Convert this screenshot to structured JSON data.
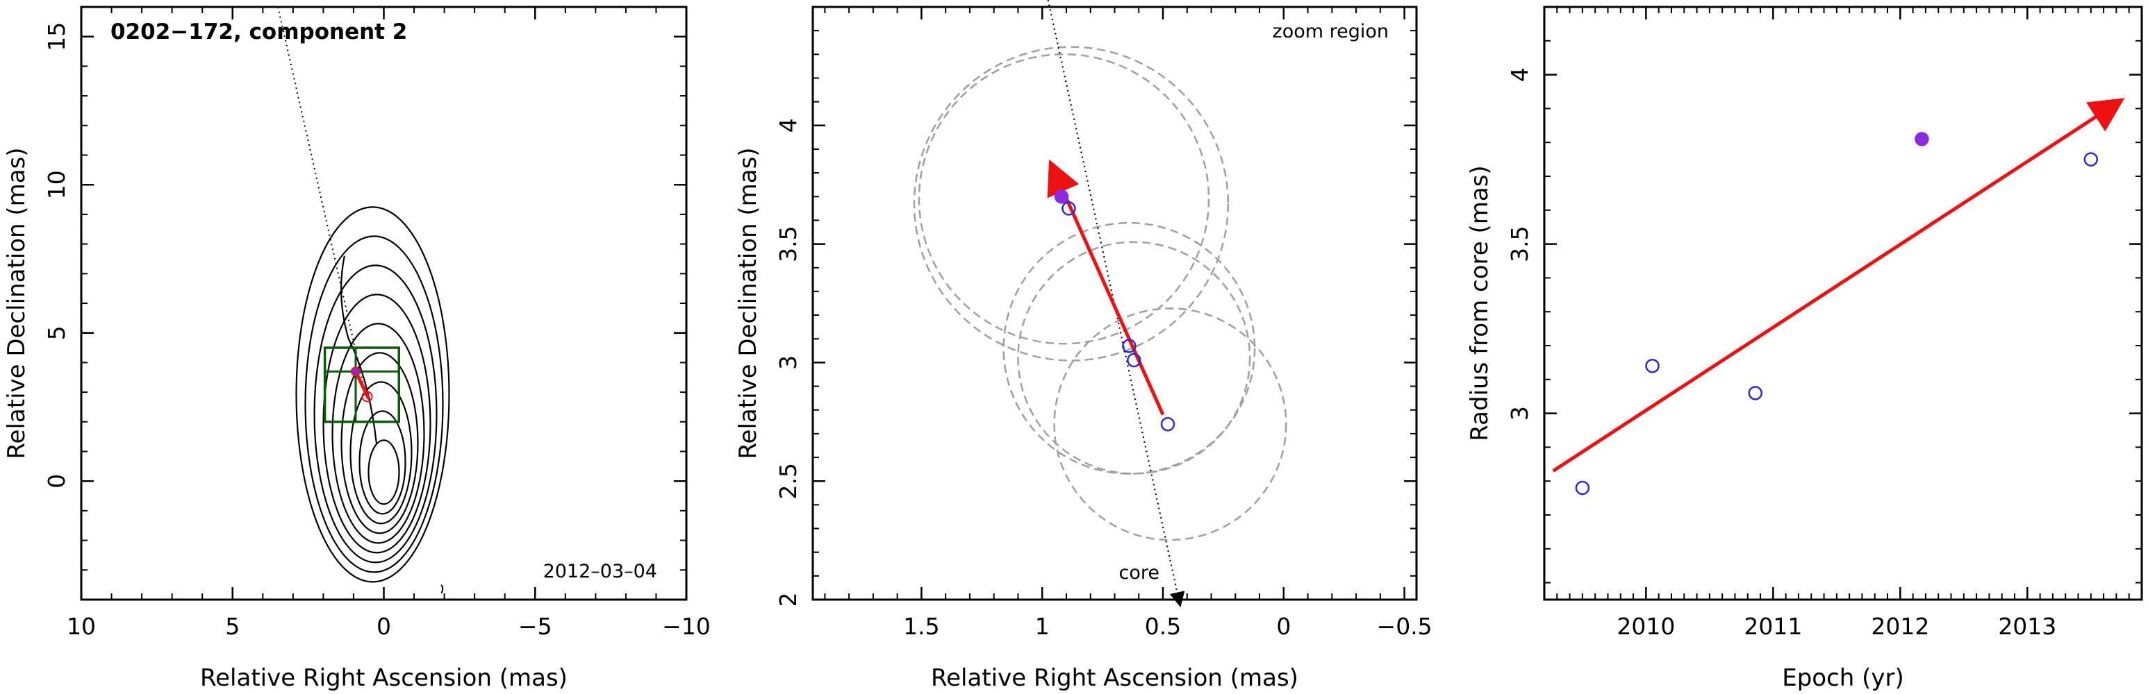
{
  "colors": {
    "axis": "#000000",
    "open_marker": "#2a2ad8",
    "filled_marker": "#8a2be2",
    "arrow": "#ee1111",
    "box": "#0a5a0a",
    "circle": "#a0a0a0"
  },
  "chart_data": [
    {
      "type": "contour",
      "title": "0202−172, component 2",
      "date_label": "2012–03–04",
      "xlabel": "Relative Right Ascension (mas)",
      "ylabel": "Relative Declination (mas)",
      "xlim": [
        10,
        -10
      ],
      "ylim": [
        -4,
        16
      ],
      "xticks": [
        10,
        5,
        0,
        -5,
        -10
      ],
      "xtick_labels": [
        "10",
        "5",
        "0",
        "−5",
        "−10"
      ],
      "yticks": [
        0,
        5,
        10,
        15
      ],
      "ytick_labels": [
        "0",
        "5",
        "10",
        "15"
      ],
      "zoom_box": {
        "x": [
          1.95,
          -0.5
        ],
        "y": [
          2.0,
          4.5
        ]
      },
      "arrow": {
        "from": [
          0.5,
          2.78
        ],
        "to": [
          0.93,
          3.7
        ]
      },
      "components": [
        {
          "x": 0.93,
          "y": 3.7,
          "filled": true
        },
        {
          "x": 0.55,
          "y": 2.85,
          "filled": false
        }
      ]
    },
    {
      "type": "scatter",
      "note": "zoom region",
      "core_label": "core",
      "xlabel": "Relative Right Ascension (mas)",
      "ylabel": "Relative Declination (mas)",
      "xlim": [
        1.95,
        -0.55
      ],
      "ylim": [
        2.0,
        4.5
      ],
      "xticks": [
        1.5,
        1,
        0.5,
        0,
        -0.5
      ],
      "xtick_labels": [
        "1.5",
        "1",
        "0.5",
        "0",
        "−0.5"
      ],
      "yticks": [
        2,
        2.5,
        3,
        3.5,
        4
      ],
      "ytick_labels": [
        "2",
        "2.5",
        "3",
        "3.5",
        "4"
      ],
      "points": [
        {
          "x": 0.92,
          "y": 3.7,
          "filled": true
        },
        {
          "x": 0.89,
          "y": 3.65,
          "filled": false
        },
        {
          "x": 0.64,
          "y": 3.07,
          "filled": false
        },
        {
          "x": 0.62,
          "y": 3.01,
          "filled": false
        },
        {
          "x": 0.48,
          "y": 2.74,
          "filled": false
        }
      ],
      "error_circles": [
        {
          "x": 0.91,
          "y": 3.69,
          "r": 0.6
        },
        {
          "x": 0.88,
          "y": 3.67,
          "r": 0.65
        },
        {
          "x": 0.64,
          "y": 3.06,
          "r": 0.52
        },
        {
          "x": 0.62,
          "y": 3.02,
          "r": 0.48
        },
        {
          "x": 0.47,
          "y": 2.74,
          "r": 0.48
        }
      ],
      "arrow": {
        "from": [
          0.5,
          2.78
        ],
        "to": [
          0.96,
          3.83
        ]
      },
      "core_line": {
        "from": [
          0.98,
          4.55
        ],
        "to": [
          0.43,
          1.98
        ]
      }
    },
    {
      "type": "scatter",
      "xlabel": "Epoch (yr)",
      "ylabel": "Radius from core (mas)",
      "xlim": [
        2009.2,
        2013.9
      ],
      "ylim": [
        2.45,
        4.2
      ],
      "xticks": [
        2010,
        2011,
        2012,
        2013
      ],
      "xtick_labels": [
        "2010",
        "2011",
        "2012",
        "2013"
      ],
      "yticks": [
        3,
        3.5,
        4
      ],
      "ytick_labels": [
        "3",
        "3.5",
        "4"
      ],
      "points": [
        {
          "x": 2009.5,
          "y": 2.78,
          "filled": false
        },
        {
          "x": 2010.05,
          "y": 3.14,
          "filled": false
        },
        {
          "x": 2010.86,
          "y": 3.06,
          "filled": false
        },
        {
          "x": 2012.17,
          "y": 3.81,
          "filled": true
        },
        {
          "x": 2013.5,
          "y": 3.75,
          "filled": false
        }
      ],
      "fit_arrow": {
        "from": [
          2009.27,
          2.83
        ],
        "to": [
          2013.72,
          3.92
        ]
      }
    }
  ]
}
